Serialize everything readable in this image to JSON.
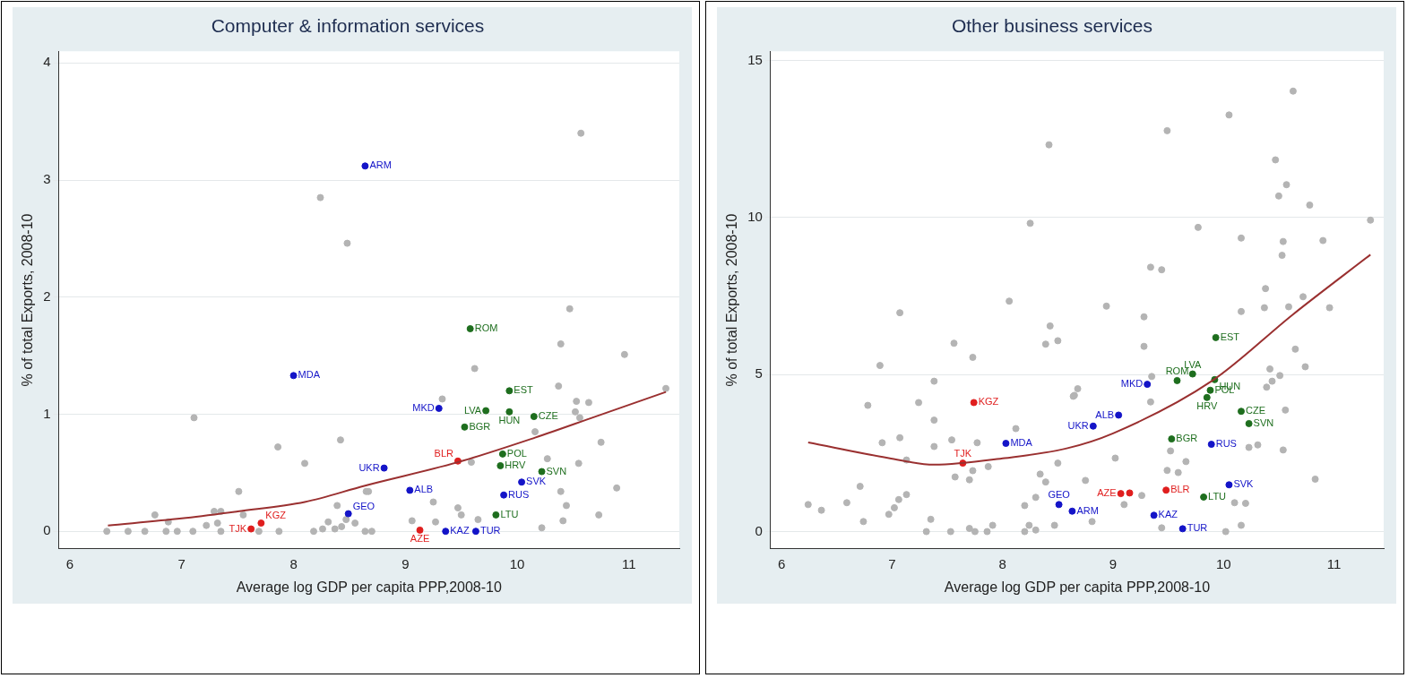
{
  "chart_data": [
    {
      "type": "scatter",
      "title": "Computer & information services",
      "xlabel": "Average log GDP per capita PPP,2008-10",
      "ylabel": "% of total Exports, 2008-10",
      "xlim": [
        5.9,
        11.45
      ],
      "ylim": [
        -0.15,
        4.1
      ],
      "xticks": [
        6,
        7,
        8,
        9,
        10,
        11
      ],
      "yticks": [
        0,
        1,
        2,
        3,
        4
      ],
      "grid": "y",
      "legend": false,
      "marker": "circle",
      "series": [
        {
          "color": "#b4b4b4",
          "x": [
            8.24,
            8.48,
            7.11,
            8.42,
            7.86,
            8.1,
            7.51,
            6.76,
            7.29,
            7.35,
            7.55,
            8.39,
            6.33,
            6.52,
            6.67,
            6.86,
            6.96,
            7.1,
            7.22,
            7.32,
            7.35,
            6.88,
            7.87,
            8.18,
            8.26,
            8.31,
            8.37,
            8.43,
            8.47,
            8.55,
            8.64,
            8.65,
            7.69,
            10.57,
            10.47,
            10.39,
            10.96,
            9.62,
            10.37,
            9.33,
            10.53,
            10.64,
            10.52,
            10.56,
            11.33,
            10.16,
            10.75,
            10.55,
            10.27,
            9.59,
            10.89,
            10.39,
            10.44,
            10.73,
            10.41,
            10.22,
            9.25,
            9.47,
            9.5,
            9.65,
            9.27,
            9.06,
            8.67,
            8.7
          ],
          "values": [
            2.85,
            2.46,
            0.97,
            0.78,
            0.72,
            0.58,
            0.34,
            0.14,
            0.17,
            0.17,
            0.14,
            0.22,
            0,
            0,
            0,
            0,
            0,
            0,
            0.05,
            0.07,
            0,
            0.08,
            0,
            0,
            0.02,
            0.08,
            0.02,
            0.04,
            0.1,
            0.07,
            0,
            0.34,
            0,
            3.4,
            1.9,
            1.6,
            1.51,
            1.39,
            1.24,
            1.13,
            1.11,
            1.1,
            1.02,
            0.97,
            1.22,
            0.85,
            0.76,
            0.58,
            0.62,
            0.59,
            0.37,
            0.34,
            0.22,
            0.14,
            0.09,
            0.03,
            0.25,
            0.2,
            0.14,
            0.1,
            0.08,
            0.09,
            0.34,
            0
          ]
        },
        {
          "color": "#1414c8",
          "x": [
            8.64,
            8.0,
            8.81,
            8.49,
            9.3,
            9.88,
            10.04,
            9.04,
            9.36,
            9.63
          ],
          "values": [
            3.12,
            1.33,
            0.54,
            0.15,
            1.05,
            0.31,
            0.42,
            0.35,
            0,
            0
          ]
        },
        {
          "color": "#e01e1e",
          "x": [
            7.62,
            7.71,
            9.47,
            9.13
          ],
          "values": [
            0.02,
            0.07,
            0.6,
            0.01
          ]
        },
        {
          "color": "#1e6e1e",
          "x": [
            9.58,
            9.53,
            9.72,
            9.93,
            9.93,
            10.15,
            9.87,
            9.85,
            10.22,
            9.81
          ],
          "values": [
            1.73,
            0.89,
            1.03,
            1.02,
            1.2,
            0.98,
            0.66,
            0.56,
            0.51,
            0.14
          ]
        },
        {
          "type": "line",
          "marker": "none",
          "color": "#9a3030",
          "x": [
            6.34,
            7,
            7.5,
            8.1,
            8.64,
            9.47,
            10.16,
            10.7,
            11.33
          ],
          "values": [
            0.05,
            0.11,
            0.17,
            0.25,
            0.39,
            0.59,
            0.8,
            0.98,
            1.19
          ]
        }
      ],
      "annotations": [
        {
          "text": "ARM",
          "x": 8.64,
          "y": 3.12
        },
        {
          "text": "MDA",
          "x": 8.0,
          "y": 1.33
        },
        {
          "text": "UKR",
          "x": 8.81,
          "y": 0.54
        },
        {
          "text": "GEO",
          "x": 8.49,
          "y": 0.15
        },
        {
          "text": "MKD",
          "x": 9.3,
          "y": 1.05
        },
        {
          "text": "RUS",
          "x": 9.88,
          "y": 0.31
        },
        {
          "text": "SVK",
          "x": 10.04,
          "y": 0.42
        },
        {
          "text": "ALB",
          "x": 9.04,
          "y": 0.35
        },
        {
          "text": "KAZ",
          "x": 9.36,
          "y": 0
        },
        {
          "text": "TUR",
          "x": 9.63,
          "y": 0
        },
        {
          "text": "TJK",
          "x": 7.62,
          "y": 0.02
        },
        {
          "text": "KGZ",
          "x": 7.71,
          "y": 0.07
        },
        {
          "text": "BLR",
          "x": 9.47,
          "y": 0.6
        },
        {
          "text": "AZE",
          "x": 9.13,
          "y": 0.01
        },
        {
          "text": "ROM",
          "x": 9.58,
          "y": 1.73
        },
        {
          "text": "BGR",
          "x": 9.53,
          "y": 0.89
        },
        {
          "text": "LVA",
          "x": 9.72,
          "y": 1.03
        },
        {
          "text": "HUN",
          "x": 9.93,
          "y": 1.02
        },
        {
          "text": "EST",
          "x": 9.93,
          "y": 1.2
        },
        {
          "text": "CZE",
          "x": 10.15,
          "y": 0.98
        },
        {
          "text": "POL",
          "x": 9.87,
          "y": 0.66
        },
        {
          "text": "HRV",
          "x": 9.85,
          "y": 0.56
        },
        {
          "text": "SVN",
          "x": 10.22,
          "y": 0.51
        },
        {
          "text": "LTU",
          "x": 9.81,
          "y": 0.14
        }
      ]
    },
    {
      "type": "scatter",
      "title": "Other business services",
      "xlabel": "Average log GDP per capita PPP,2008-10",
      "ylabel": "% of total Exports, 2008-10",
      "xlim": [
        5.9,
        11.45
      ],
      "ylim": [
        -0.55,
        15.3
      ],
      "xticks": [
        6,
        7,
        8,
        9,
        10,
        11
      ],
      "yticks": [
        0,
        5,
        10,
        15
      ],
      "grid": "y",
      "legend": false,
      "marker": "circle",
      "series": [
        {
          "color": "#b4b4b4",
          "x": [
            8.42,
            8.25,
            8.06,
            7.07,
            8.43,
            8.39,
            8.5,
            7.56,
            7.73,
            6.89,
            7.38,
            6.78,
            7.24,
            7.38,
            8.12,
            6.91,
            7.07,
            7.38,
            7.54,
            7.77,
            7.13,
            7.73,
            7.57,
            7.7,
            7.87,
            8.5,
            8.34,
            8.39,
            6.71,
            6.24,
            6.36,
            6.59,
            6.74,
            6.97,
            7.02,
            7.06,
            7.13,
            7.35,
            7.31,
            7.53,
            7.7,
            7.75,
            7.86,
            7.91,
            8.2,
            8.3,
            8.24,
            8.2,
            8.3,
            8.47,
            8.65,
            10.63,
            10.05,
            9.49,
            10.47,
            10.57,
            10.5,
            10.78,
            11.33,
            9.77,
            10.16,
            10.54,
            10.53,
            10.9,
            9.34,
            9.44,
            8.94,
            9.28,
            10.16,
            10.37,
            10.59,
            10.38,
            10.72,
            10.96,
            9.28,
            10.65,
            10.74,
            10.42,
            10.51,
            10.44,
            10.39,
            10.56,
            8.68,
            8.64,
            9.34,
            9.35,
            9.02,
            9.52,
            9.66,
            9.49,
            9.59,
            8.75,
            9.26,
            9.1,
            8.81,
            9.44,
            10.02,
            10.16,
            10.1,
            10.2,
            10.23,
            10.31,
            10.54,
            10.83
          ],
          "values": [
            12.32,
            9.82,
            7.34,
            6.97,
            6.55,
            5.97,
            6.08,
            6.0,
            5.55,
            5.29,
            4.79,
            4.02,
            4.11,
            3.55,
            3.28,
            2.83,
            2.99,
            2.71,
            2.92,
            2.83,
            2.28,
            1.94,
            1.74,
            1.65,
            2.07,
            2.18,
            1.83,
            1.58,
            1.44,
            0.86,
            0.68,
            0.92,
            0.32,
            0.55,
            0.76,
            1.02,
            1.18,
            0.39,
            0,
            0,
            0.1,
            0,
            0,
            0.2,
            0.83,
            1.09,
            0.2,
            0,
            0.05,
            0.2,
            4.34,
            14.03,
            13.27,
            12.77,
            11.84,
            11.05,
            10.69,
            10.4,
            9.92,
            9.69,
            9.35,
            9.24,
            8.8,
            9.27,
            8.42,
            8.34,
            7.18,
            6.84,
            7.01,
            7.13,
            7.16,
            7.74,
            7.48,
            7.13,
            5.9,
            5.81,
            5.25,
            5.18,
            4.97,
            4.79,
            4.6,
            3.87,
            4.55,
            4.31,
            4.13,
            4.94,
            2.34,
            2.57,
            2.23,
            1.95,
            1.88,
            1.63,
            1.15,
            0.86,
            0.32,
            0.12,
            0,
            0.2,
            0.92,
            0.9,
            2.68,
            2.76,
            2.6,
            1.67
          ]
        },
        {
          "color": "#1414c8",
          "x": [
            8.03,
            8.51,
            8.63,
            8.82,
            9.05,
            9.31,
            9.89,
            10.05,
            9.37,
            9.63
          ],
          "values": [
            2.81,
            0.86,
            0.65,
            3.36,
            3.71,
            4.69,
            2.78,
            1.49,
            0.52,
            0.09
          ]
        },
        {
          "color": "#e01e1e",
          "x": [
            7.74,
            7.64,
            9.07,
            9.15,
            9.48
          ],
          "values": [
            4.11,
            2.18,
            1.21,
            1.23,
            1.32
          ]
        },
        {
          "color": "#1e6e1e",
          "x": [
            9.58,
            9.72,
            9.93,
            9.92,
            9.88,
            9.85,
            10.16,
            10.23,
            9.53,
            9.82
          ],
          "values": [
            4.81,
            5.02,
            6.18,
            4.84,
            4.5,
            4.27,
            3.83,
            3.44,
            2.95,
            1.1
          ]
        },
        {
          "type": "line",
          "marker": "none",
          "color": "#9a3030",
          "x": [
            6.24,
            6.97,
            7.38,
            8.02,
            8.58,
            9.0,
            9.9,
            10.63,
            11.33
          ],
          "values": [
            2.84,
            2.34,
            2.13,
            2.34,
            2.65,
            3.13,
            4.81,
            6.92,
            8.82
          ]
        }
      ],
      "annotations": [
        {
          "text": "MDA",
          "x": 8.03,
          "y": 2.81
        },
        {
          "text": "GEO",
          "x": 8.51,
          "y": 0.86
        },
        {
          "text": "ARM",
          "x": 8.63,
          "y": 0.65
        },
        {
          "text": "UKR",
          "x": 8.82,
          "y": 3.36
        },
        {
          "text": "ALB",
          "x": 9.05,
          "y": 3.71
        },
        {
          "text": "MKD",
          "x": 9.31,
          "y": 4.69
        },
        {
          "text": "RUS",
          "x": 9.89,
          "y": 2.78
        },
        {
          "text": "SVK",
          "x": 10.05,
          "y": 1.49
        },
        {
          "text": "KAZ",
          "x": 9.37,
          "y": 0.52
        },
        {
          "text": "TUR",
          "x": 9.63,
          "y": 0.09
        },
        {
          "text": "KGZ",
          "x": 7.74,
          "y": 4.11
        },
        {
          "text": "TJK",
          "x": 7.64,
          "y": 2.18
        },
        {
          "text": "AZE",
          "x": 9.07,
          "y": 1.21
        },
        {
          "text": "BLR",
          "x": 9.48,
          "y": 1.32
        },
        {
          "text": "ROM",
          "x": 9.58,
          "y": 4.81
        },
        {
          "text": "LVA",
          "x": 9.72,
          "y": 5.02
        },
        {
          "text": "EST",
          "x": 9.93,
          "y": 6.18
        },
        {
          "text": "HUN",
          "x": 9.92,
          "y": 4.84
        },
        {
          "text": "POL",
          "x": 9.88,
          "y": 4.5
        },
        {
          "text": "HRV",
          "x": 9.85,
          "y": 4.27
        },
        {
          "text": "CZE",
          "x": 10.16,
          "y": 3.83
        },
        {
          "text": "SVN",
          "x": 10.23,
          "y": 3.44
        },
        {
          "text": "BGR",
          "x": 9.53,
          "y": 2.95
        },
        {
          "text": "LTU",
          "x": 9.82,
          "y": 1.1
        }
      ]
    }
  ]
}
